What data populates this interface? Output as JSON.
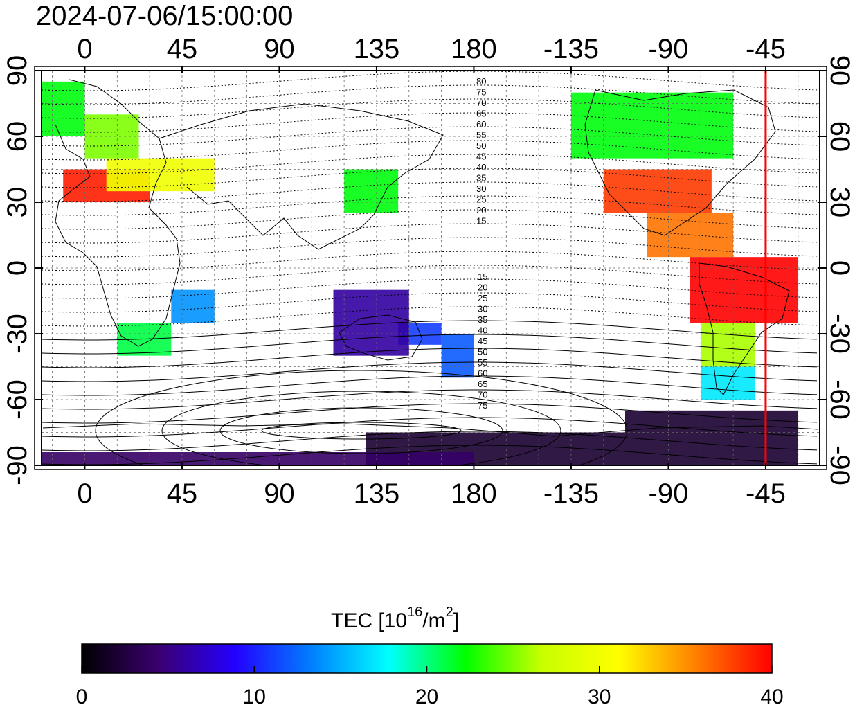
{
  "title": "2024-07-06/15:00:00",
  "colorbar": {
    "label_main": "TEC  [10",
    "label_sup1": "16",
    "label_mid": "/m",
    "label_sup2": "2",
    "label_end": "]",
    "ticks": [
      "0",
      "10",
      "20",
      "30",
      "40"
    ],
    "range": [
      0,
      40
    ],
    "stops": [
      "#000000",
      "#3b0070",
      "#2400ff",
      "#0080ff",
      "#00ffff",
      "#00ff00",
      "#c8ff00",
      "#ffff00",
      "#ff8000",
      "#ff0000"
    ]
  },
  "chart_data": {
    "type": "heatmap",
    "title": "2024-07-06/15:00:00",
    "x_ticks_top": [
      "0",
      "45",
      "90",
      "135",
      "180",
      "-135",
      "-90",
      "-45"
    ],
    "x_ticks_bottom": [
      "0",
      "45",
      "90",
      "135",
      "180",
      "-135",
      "-90",
      "-45"
    ],
    "x_tick_lons": [
      0,
      45,
      90,
      135,
      180,
      225,
      270,
      315
    ],
    "y_ticks_left": [
      "90",
      "60",
      "30",
      "0",
      "-30",
      "-60",
      "-90"
    ],
    "y_ticks_right": [
      "90",
      "60",
      "30",
      "0",
      "-30",
      "-60",
      "-90"
    ],
    "y_tick_lats": [
      90,
      60,
      30,
      0,
      -30,
      -60,
      -90
    ],
    "xlim": [
      -20,
      340
    ],
    "ylim": [
      -90,
      90
    ],
    "grid": true,
    "marker_longitude": 315,
    "contour_labels_north": [
      "80",
      "75",
      "70",
      "65",
      "60",
      "55",
      "50",
      "45",
      "40",
      "35",
      "30",
      "25",
      "20",
      "15"
    ],
    "contour_labels_south": [
      "15",
      "20",
      "25",
      "30",
      "35",
      "40",
      "45",
      "50",
      "55",
      "60",
      "65",
      "70",
      "75"
    ],
    "tec_regions": [
      {
        "lon": [
          -20,
          0
        ],
        "lat": [
          60,
          85
        ],
        "tec": 22
      },
      {
        "lon": [
          0,
          25
        ],
        "lat": [
          50,
          70
        ],
        "tec": 25
      },
      {
        "lon": [
          -10,
          30
        ],
        "lat": [
          30,
          45
        ],
        "tec": 39
      },
      {
        "lon": [
          10,
          60
        ],
        "lat": [
          35,
          50
        ],
        "tec": 30
      },
      {
        "lon": [
          15,
          40
        ],
        "lat": [
          -40,
          -25
        ],
        "tec": 21
      },
      {
        "lon": [
          40,
          60
        ],
        "lat": [
          -25,
          -10
        ],
        "tec": 14
      },
      {
        "lon": [
          120,
          145
        ],
        "lat": [
          25,
          45
        ],
        "tec": 22
      },
      {
        "lon": [
          145,
          165
        ],
        "lat": [
          -35,
          -25
        ],
        "tec": 11
      },
      {
        "lon": [
          165,
          180
        ],
        "lat": [
          -50,
          -30
        ],
        "tec": 12
      },
      {
        "lon": [
          115,
          150
        ],
        "lat": [
          -40,
          -10
        ],
        "tec": 6
      },
      {
        "lon": [
          225,
          300
        ],
        "lat": [
          50,
          80
        ],
        "tec": 22
      },
      {
        "lon": [
          240,
          290
        ],
        "lat": [
          25,
          45
        ],
        "tec": 38
      },
      {
        "lon": [
          260,
          300
        ],
        "lat": [
          5,
          25
        ],
        "tec": 36
      },
      {
        "lon": [
          280,
          330
        ],
        "lat": [
          -25,
          5
        ],
        "tec": 40
      },
      {
        "lon": [
          285,
          310
        ],
        "lat": [
          -45,
          -25
        ],
        "tec": 26
      },
      {
        "lon": [
          285,
          310
        ],
        "lat": [
          -60,
          -45
        ],
        "tec": 17
      },
      {
        "lon": [
          250,
          330
        ],
        "lat": [
          -90,
          -65
        ],
        "tec": 2
      },
      {
        "lon": [
          130,
          250
        ],
        "lat": [
          -90,
          -75
        ],
        "tec": 2
      },
      {
        "lon": [
          -20,
          180
        ],
        "lat": [
          -90,
          -84
        ],
        "tec": 4
      }
    ]
  }
}
